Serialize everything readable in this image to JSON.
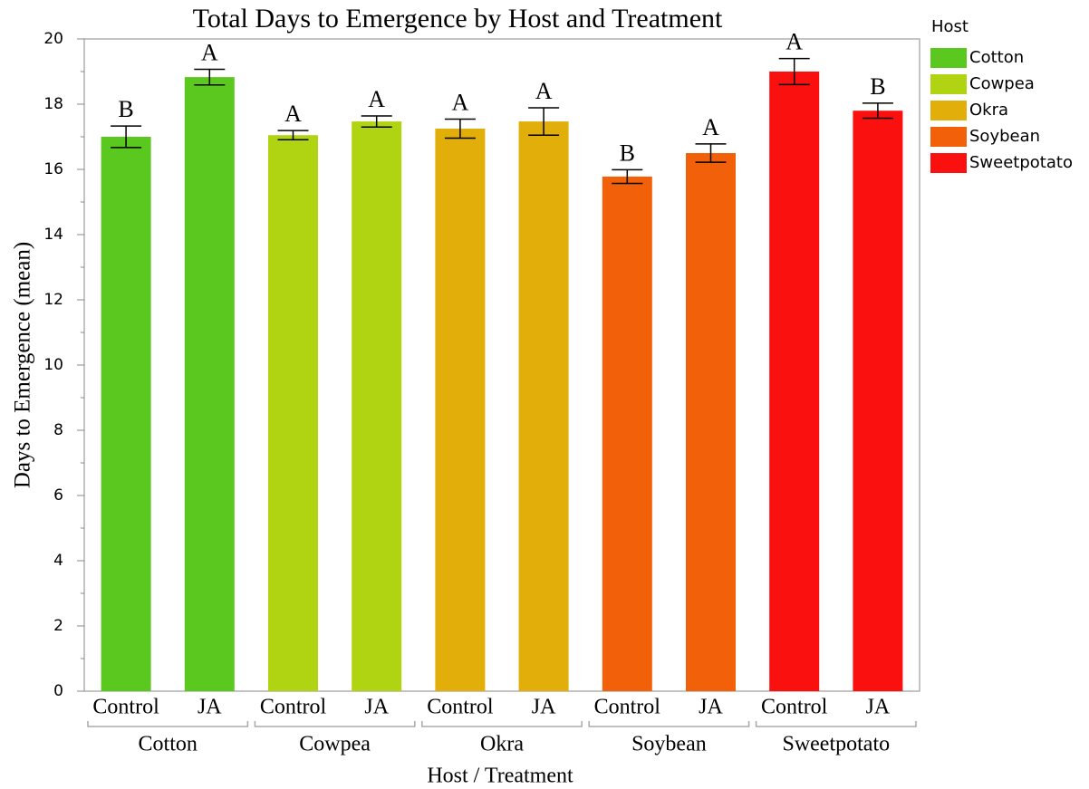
{
  "chart_data": {
    "type": "bar",
    "title": "Total Days to Emergence by Host and Treatment",
    "x_label": "Host / Treatment",
    "y_label": "Days to Emergence (mean)",
    "legend_title": "Host",
    "categories": [
      "Control",
      "JA"
    ],
    "series": [
      {
        "name": "Cotton",
        "color": "#5ac81e",
        "values": [
          17.0,
          18.83
        ],
        "errors": [
          0.33,
          0.24
        ],
        "letters": [
          "B",
          "A"
        ]
      },
      {
        "name": "Cowpea",
        "color": "#b0d412",
        "values": [
          17.05,
          17.47
        ],
        "errors": [
          0.14,
          0.17
        ],
        "letters": [
          "A",
          "A"
        ]
      },
      {
        "name": "Okra",
        "color": "#e1ae0a",
        "values": [
          17.25,
          17.47
        ],
        "errors": [
          0.29,
          0.42
        ],
        "letters": [
          "A",
          "A"
        ]
      },
      {
        "name": "Soybean",
        "color": "#f2600a",
        "values": [
          15.78,
          16.5
        ],
        "errors": [
          0.21,
          0.28
        ],
        "letters": [
          "B",
          "A"
        ]
      },
      {
        "name": "Sweetpotato",
        "color": "#fb1010",
        "values": [
          19.0,
          17.8
        ],
        "errors": [
          0.4,
          0.23
        ],
        "letters": [
          "A",
          "B"
        ]
      }
    ],
    "ylim": [
      0,
      20
    ],
    "yticks": [
      0,
      2,
      4,
      6,
      8,
      10,
      12,
      14,
      16,
      18,
      20
    ],
    "minor_yticks": [
      1,
      3,
      5,
      7,
      9,
      11,
      13,
      15,
      17,
      19
    ]
  }
}
